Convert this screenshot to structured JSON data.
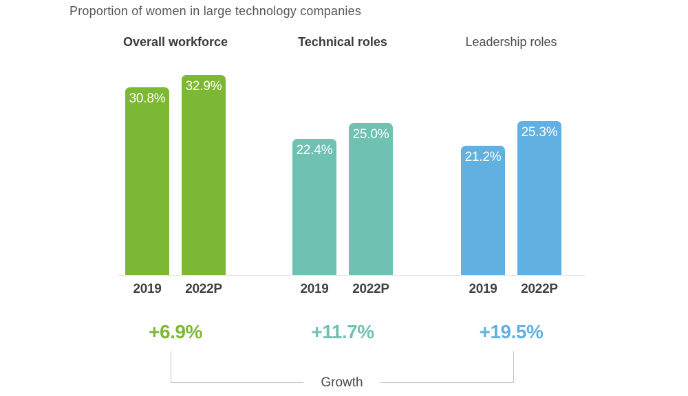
{
  "title": "Proportion of women in large technology companies",
  "chart_data": {
    "type": "bar",
    "title": "Proportion of women in large technology companies",
    "value_unit": "%",
    "categories": [
      "2019",
      "2022P"
    ],
    "ylim": [
      0,
      35
    ],
    "grid": false,
    "legend": false,
    "growth_axis_label": "Growth",
    "groups": [
      {
        "label": "Overall workforce",
        "color": "#7cb833",
        "growth": "+6.9%",
        "bars": [
          {
            "category": "2019",
            "value": 30.8,
            "label": "30.8%"
          },
          {
            "category": "2022P",
            "value": 32.9,
            "label": "32.9%"
          }
        ]
      },
      {
        "label": "Technical roles",
        "color": "#6fc1b2",
        "growth": "+11.7%",
        "bars": [
          {
            "category": "2019",
            "value": 22.4,
            "label": "22.4%"
          },
          {
            "category": "2022P",
            "value": 25.0,
            "label": "25.0%"
          }
        ]
      },
      {
        "label": "Leadership roles",
        "color": "#60b1e2",
        "growth": "+19.5%",
        "bars": [
          {
            "category": "2019",
            "value": 21.2,
            "label": "21.2%"
          },
          {
            "category": "2022P",
            "value": 25.3,
            "label": "25.3%"
          }
        ]
      }
    ]
  },
  "colors": {
    "green": "#7cb833",
    "teal": "#6fc1b2",
    "blue": "#60b1e2",
    "title_text": "#54565b",
    "header_text": "#3a3a3c",
    "axis_text": "#414144",
    "bracket_line": "#c3c3c3",
    "baseline_line": "#e3e3e3"
  }
}
